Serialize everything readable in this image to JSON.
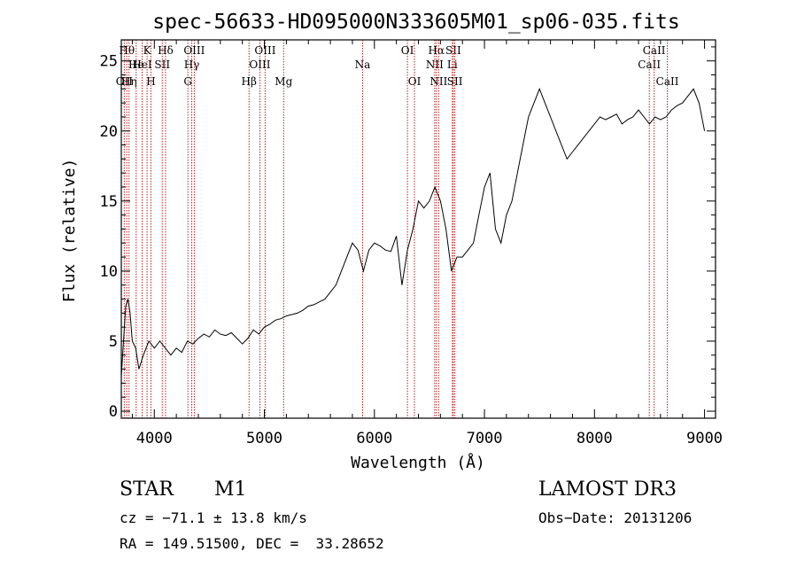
{
  "chart_data": {
    "type": "line",
    "title": "spec-56633-HD095000N333605M01_sp06-035.fits",
    "xlabel": "Wavelength (Å)",
    "ylabel": "Flux (relative)",
    "xlim": [
      3700,
      9100
    ],
    "ylim": [
      -0.5,
      26.5
    ],
    "xticks": [
      4000,
      5000,
      6000,
      7000,
      8000,
      9000
    ],
    "yticks": [
      0,
      5,
      10,
      15,
      20,
      25
    ],
    "grid": false,
    "line_color": "#000000",
    "marker_color": "#b22222",
    "series": [
      {
        "x": [
          3700,
          3720,
          3740,
          3760,
          3780,
          3800,
          3830,
          3860,
          3900,
          3950,
          4000,
          4050,
          4100,
          4150,
          4200,
          4250,
          4300,
          4350,
          4400,
          4450,
          4500,
          4550,
          4600,
          4650,
          4700,
          4750,
          4800,
          4850,
          4900,
          4950,
          5000,
          5050,
          5100,
          5150,
          5200,
          5250,
          5300,
          5350,
          5400,
          5450,
          5500,
          5550,
          5600,
          5650,
          5700,
          5750,
          5800,
          5850,
          5900,
          5950,
          6000,
          6050,
          6100,
          6150,
          6200,
          6250,
          6300,
          6350,
          6400,
          6450,
          6500,
          6550,
          6600,
          6650,
          6700,
          6750,
          6800,
          6850,
          6900,
          6950,
          7000,
          7050,
          7100,
          7150,
          7200,
          7250,
          7300,
          7350,
          7400,
          7450,
          7500,
          7550,
          7600,
          7650,
          7700,
          7750,
          7800,
          7850,
          7900,
          7950,
          8000,
          8050,
          8100,
          8150,
          8200,
          8250,
          8300,
          8350,
          8400,
          8450,
          8500,
          8550,
          8600,
          8650,
          8700,
          8750,
          8800,
          8850,
          8900,
          8950,
          9000
        ],
        "values": [
          2.5,
          5,
          7.5,
          8,
          7,
          5,
          4.5,
          3,
          4,
          5,
          4.5,
          5,
          4.5,
          4,
          4.5,
          4.2,
          5,
          4.8,
          5.2,
          5.5,
          5.3,
          5.8,
          5.5,
          5.4,
          5.6,
          5.2,
          4.8,
          5.2,
          5.8,
          5.5,
          6,
          6.2,
          6.5,
          6.6,
          6.8,
          6.9,
          7,
          7.2,
          7.5,
          7.6,
          7.8,
          8,
          8.5,
          9,
          10,
          11,
          12,
          11.5,
          10,
          11.5,
          12,
          11.8,
          11.5,
          11.4,
          12.5,
          9,
          11.5,
          13,
          15,
          14.5,
          15,
          16,
          15,
          13,
          10,
          11,
          11,
          11.5,
          12,
          14,
          16,
          17,
          13,
          12,
          14,
          15,
          17,
          19,
          21,
          22,
          23,
          22,
          21,
          20,
          19,
          18,
          18.5,
          19,
          19.5,
          20,
          20.5,
          21,
          20.8,
          21,
          21.2,
          20.5,
          20.8,
          21,
          21.5,
          21,
          20.5,
          21,
          20.8,
          21,
          21.5,
          21.8,
          22,
          22.5,
          23,
          22,
          20
        ]
      }
    ],
    "line_markers": [
      {
        "x": 3727,
        "label": "OII",
        "row": 3
      },
      {
        "x": 3750,
        "label": "Hθ",
        "row": 1
      },
      {
        "x": 3770,
        "label": "Hη",
        "row": 3
      },
      {
        "x": 3835,
        "label": "He",
        "row": 2
      },
      {
        "x": 3889,
        "label": "HeI",
        "row": 2
      },
      {
        "x": 3934,
        "label": "K",
        "row": 1
      },
      {
        "x": 3969,
        "label": "H",
        "row": 3
      },
      {
        "x": 4072,
        "label": "SII",
        "row": 2
      },
      {
        "x": 4102,
        "label": "Hδ",
        "row": 1
      },
      {
        "x": 4305,
        "label": "G",
        "row": 3
      },
      {
        "x": 4340,
        "label": "Hγ",
        "row": 2
      },
      {
        "x": 4363,
        "label": "OIII",
        "row": 1
      },
      {
        "x": 4861,
        "label": "Hβ",
        "row": 3
      },
      {
        "x": 4959,
        "label": "OIII",
        "row": 2
      },
      {
        "x": 5007,
        "label": "OIII",
        "row": 1
      },
      {
        "x": 5175,
        "label": "Mg",
        "row": 3
      },
      {
        "x": 5893,
        "label": "Na",
        "row": 2
      },
      {
        "x": 6300,
        "label": "OI",
        "row": 1
      },
      {
        "x": 6364,
        "label": "OI",
        "row": 3
      },
      {
        "x": 6548,
        "label": "NII",
        "row": 2
      },
      {
        "x": 6563,
        "label": "Hα",
        "row": 1
      },
      {
        "x": 6584,
        "label": "NII",
        "row": 3
      },
      {
        "x": 6708,
        "label": "Li",
        "row": 2
      },
      {
        "x": 6717,
        "label": "SII",
        "row": 1
      },
      {
        "x": 6731,
        "label": "SII",
        "row": 3
      },
      {
        "x": 8498,
        "label": "CaII",
        "row": 2
      },
      {
        "x": 8542,
        "label": "CaII",
        "row": 1
      },
      {
        "x": 8662,
        "label": "CaII",
        "row": 3
      }
    ]
  },
  "info": {
    "class": "STAR",
    "subclass": "M1",
    "survey": "LAMOST DR3",
    "cz": "cz = −71.1 ± 13.8 km/s",
    "obs_date": "Obs−Date: 20131206",
    "coords": "RA = 149.51500, DEC =  33.28652"
  }
}
